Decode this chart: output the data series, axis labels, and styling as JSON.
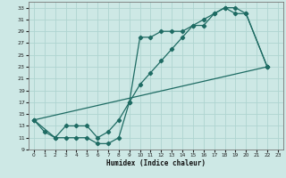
{
  "xlabel": "Humidex (Indice chaleur)",
  "bg_color": "#cde8e5",
  "grid_color": "#afd4d0",
  "line_color": "#1e6b63",
  "xlim": [
    -0.5,
    23.5
  ],
  "ylim": [
    9,
    34
  ],
  "xticks": [
    0,
    1,
    2,
    3,
    4,
    5,
    6,
    7,
    8,
    9,
    10,
    11,
    12,
    13,
    14,
    15,
    16,
    17,
    18,
    19,
    20,
    21,
    22,
    23
  ],
  "yticks": [
    9,
    11,
    13,
    15,
    17,
    19,
    21,
    23,
    25,
    27,
    29,
    31,
    33
  ],
  "line1_x": [
    0,
    1,
    2,
    3,
    4,
    5,
    6,
    7,
    8,
    9,
    10,
    11,
    12,
    13,
    14,
    15,
    16,
    17,
    18,
    19,
    20,
    22
  ],
  "line1_y": [
    14,
    12,
    11,
    11,
    11,
    11,
    10,
    10,
    11,
    17,
    28,
    28,
    29,
    29,
    29,
    30,
    30,
    32,
    33,
    32,
    32,
    23
  ],
  "line2_x": [
    0,
    2,
    3,
    4,
    5,
    6,
    7,
    8,
    9,
    10,
    11,
    12,
    13,
    14,
    15,
    16,
    17,
    18,
    19,
    20,
    22
  ],
  "line2_y": [
    14,
    11,
    13,
    13,
    13,
    11,
    12,
    14,
    17,
    20,
    22,
    24,
    26,
    28,
    30,
    31,
    32,
    33,
    33,
    32,
    23
  ],
  "line3_x": [
    0,
    22
  ],
  "line3_y": [
    14,
    23
  ]
}
